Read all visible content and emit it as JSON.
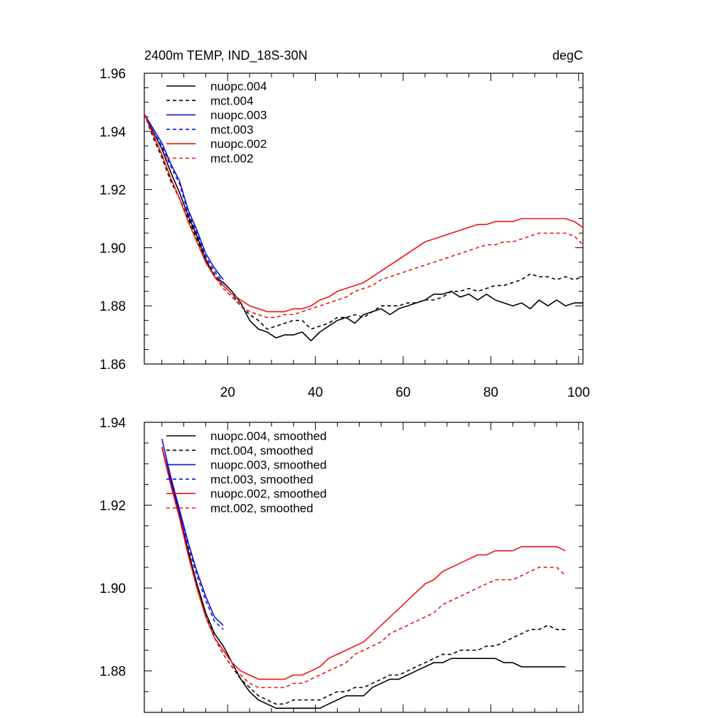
{
  "chart_data": [
    {
      "type": "line",
      "title": "2400m TEMP, IND_18S-30N",
      "units": "degC",
      "xlim": [
        1,
        101
      ],
      "ylim": [
        1.86,
        1.96
      ],
      "xticks": [
        20,
        40,
        60,
        80,
        100
      ],
      "xtick_labels": [
        "20",
        "40",
        "60",
        "80",
        "100"
      ],
      "yticks": [
        1.86,
        1.88,
        1.9,
        1.92,
        1.94,
        1.96
      ],
      "ytick_labels": [
        "1.86",
        "1.88",
        "1.90",
        "1.92",
        "1.94",
        "1.96"
      ],
      "legend_position": "top-left",
      "series": [
        {
          "name": "nuopc.004",
          "color": "#000000",
          "dashed": false,
          "x": [
            1,
            3,
            5,
            7,
            9,
            11,
            13,
            15,
            17,
            19,
            21,
            23,
            25,
            27,
            29,
            31,
            33,
            35,
            37,
            39,
            41,
            43,
            45,
            47,
            49,
            51,
            53,
            55,
            57,
            59,
            61,
            63,
            65,
            67,
            69,
            71,
            73,
            75,
            77,
            79,
            81,
            83,
            85,
            87,
            89,
            91,
            93,
            95,
            97,
            99,
            101
          ],
          "y": [
            1.946,
            1.94,
            1.934,
            1.926,
            1.919,
            1.911,
            1.904,
            1.896,
            1.89,
            1.888,
            1.885,
            1.881,
            1.875,
            1.872,
            1.871,
            1.869,
            1.87,
            1.87,
            1.871,
            1.868,
            1.871,
            1.873,
            1.875,
            1.876,
            1.874,
            1.877,
            1.878,
            1.879,
            1.877,
            1.879,
            1.88,
            1.881,
            1.882,
            1.884,
            1.884,
            1.885,
            1.883,
            1.884,
            1.882,
            1.884,
            1.882,
            1.881,
            1.88,
            1.881,
            1.879,
            1.882,
            1.88,
            1.882,
            1.88,
            1.881,
            1.881
          ]
        },
        {
          "name": "mct.004",
          "color": "#000000",
          "dashed": true,
          "x": [
            1,
            3,
            5,
            7,
            9,
            11,
            13,
            15,
            17,
            19,
            21,
            23,
            25,
            27,
            29,
            31,
            33,
            35,
            37,
            39,
            41,
            43,
            45,
            47,
            49,
            51,
            53,
            55,
            57,
            59,
            61,
            63,
            65,
            67,
            69,
            71,
            73,
            75,
            77,
            79,
            81,
            83,
            85,
            87,
            89,
            91,
            93,
            95,
            97,
            99,
            101
          ],
          "y": [
            1.946,
            1.938,
            1.931,
            1.923,
            1.917,
            1.91,
            1.903,
            1.896,
            1.891,
            1.887,
            1.884,
            1.88,
            1.877,
            1.875,
            1.872,
            1.873,
            1.874,
            1.875,
            1.875,
            1.872,
            1.873,
            1.874,
            1.876,
            1.876,
            1.877,
            1.876,
            1.878,
            1.88,
            1.88,
            1.88,
            1.881,
            1.881,
            1.882,
            1.882,
            1.883,
            1.885,
            1.885,
            1.886,
            1.885,
            1.886,
            1.887,
            1.887,
            1.888,
            1.889,
            1.891,
            1.89,
            1.89,
            1.889,
            1.89,
            1.889,
            1.89
          ]
        },
        {
          "name": "nuopc.003",
          "color": "#1010dd",
          "dashed": false,
          "x": [
            1,
            3,
            5,
            7,
            9,
            11,
            13,
            15,
            17,
            19
          ],
          "y": [
            1.946,
            1.941,
            1.936,
            1.929,
            1.923,
            1.913,
            1.906,
            1.898,
            1.893,
            1.889
          ]
        },
        {
          "name": "mct.003",
          "color": "#1010dd",
          "dashed": true,
          "x": [
            1,
            3,
            5,
            7,
            9,
            11,
            13,
            15,
            17,
            19
          ],
          "y": [
            1.946,
            1.94,
            1.935,
            1.928,
            1.922,
            1.912,
            1.905,
            1.897,
            1.892,
            1.888
          ]
        },
        {
          "name": "nuopc.002",
          "color": "#ee1111",
          "dashed": false,
          "x": [
            1,
            3,
            5,
            7,
            9,
            11,
            13,
            15,
            17,
            19,
            21,
            23,
            25,
            27,
            29,
            31,
            33,
            35,
            37,
            39,
            41,
            43,
            45,
            47,
            49,
            51,
            53,
            55,
            57,
            59,
            61,
            63,
            65,
            67,
            69,
            71,
            73,
            75,
            77,
            79,
            81,
            83,
            85,
            87,
            89,
            91,
            93,
            95,
            97,
            99,
            101
          ],
          "y": [
            1.946,
            1.939,
            1.932,
            1.924,
            1.917,
            1.909,
            1.902,
            1.895,
            1.89,
            1.887,
            1.884,
            1.882,
            1.88,
            1.879,
            1.878,
            1.878,
            1.878,
            1.879,
            1.879,
            1.88,
            1.882,
            1.883,
            1.885,
            1.886,
            1.887,
            1.888,
            1.89,
            1.892,
            1.894,
            1.896,
            1.898,
            1.9,
            1.902,
            1.903,
            1.904,
            1.905,
            1.906,
            1.907,
            1.908,
            1.908,
            1.909,
            1.909,
            1.909,
            1.91,
            1.91,
            1.91,
            1.91,
            1.91,
            1.91,
            1.909,
            1.907
          ]
        },
        {
          "name": "mct.002",
          "color": "#ee1111",
          "dashed": true,
          "x": [
            1,
            3,
            5,
            7,
            9,
            11,
            13,
            15,
            17,
            19,
            21,
            23,
            25,
            27,
            29,
            31,
            33,
            35,
            37,
            39,
            41,
            43,
            45,
            47,
            49,
            51,
            53,
            55,
            57,
            59,
            61,
            63,
            65,
            67,
            69,
            71,
            73,
            75,
            77,
            79,
            81,
            83,
            85,
            87,
            89,
            91,
            93,
            95,
            97,
            99,
            101
          ],
          "y": [
            1.946,
            1.939,
            1.932,
            1.924,
            1.917,
            1.909,
            1.902,
            1.895,
            1.89,
            1.886,
            1.883,
            1.88,
            1.878,
            1.877,
            1.876,
            1.876,
            1.877,
            1.877,
            1.878,
            1.879,
            1.88,
            1.881,
            1.882,
            1.883,
            1.885,
            1.886,
            1.887,
            1.889,
            1.89,
            1.891,
            1.892,
            1.893,
            1.894,
            1.895,
            1.896,
            1.897,
            1.898,
            1.899,
            1.9,
            1.901,
            1.901,
            1.902,
            1.902,
            1.903,
            1.904,
            1.905,
            1.905,
            1.905,
            1.905,
            1.904,
            1.901
          ]
        }
      ]
    },
    {
      "type": "line",
      "title": "",
      "xlim": [
        1,
        101
      ],
      "ylim": [
        1.87,
        1.94
      ],
      "xticks": [
        20,
        40,
        60,
        80,
        100
      ],
      "yticks": [
        1.88,
        1.9,
        1.92,
        1.94
      ],
      "ytick_labels": [
        "1.88",
        "1.90",
        "1.92",
        "1.94"
      ],
      "legend_position": "top-left",
      "series": [
        {
          "name": "nuopc.004, smoothed",
          "color": "#000000",
          "dashed": false,
          "x": [
            5,
            7,
            9,
            11,
            13,
            15,
            17,
            19,
            21,
            23,
            25,
            27,
            29,
            31,
            33,
            35,
            37,
            39,
            41,
            43,
            45,
            47,
            49,
            51,
            53,
            55,
            57,
            59,
            61,
            63,
            65,
            67,
            69,
            71,
            73,
            75,
            77,
            79,
            81,
            83,
            85,
            87,
            89,
            91,
            93,
            95,
            97
          ],
          "y": [
            1.934,
            1.926,
            1.918,
            1.909,
            1.901,
            1.894,
            1.889,
            1.886,
            1.882,
            1.878,
            1.875,
            1.873,
            1.872,
            1.871,
            1.871,
            1.871,
            1.871,
            1.871,
            1.871,
            1.872,
            1.873,
            1.874,
            1.874,
            1.874,
            1.876,
            1.877,
            1.878,
            1.878,
            1.879,
            1.88,
            1.881,
            1.882,
            1.882,
            1.883,
            1.883,
            1.883,
            1.883,
            1.883,
            1.883,
            1.882,
            1.882,
            1.881,
            1.881,
            1.881,
            1.881,
            1.881,
            1.881
          ]
        },
        {
          "name": "mct.004, smoothed",
          "color": "#000000",
          "dashed": true,
          "x": [
            5,
            7,
            9,
            11,
            13,
            15,
            17,
            19,
            21,
            23,
            25,
            27,
            29,
            31,
            33,
            35,
            37,
            39,
            41,
            43,
            45,
            47,
            49,
            51,
            53,
            55,
            57,
            59,
            61,
            63,
            65,
            67,
            69,
            71,
            73,
            75,
            77,
            79,
            81,
            83,
            85,
            87,
            89,
            91,
            93,
            95,
            97
          ],
          "y": [
            1.934,
            1.926,
            1.917,
            1.909,
            1.901,
            1.894,
            1.888,
            1.884,
            1.881,
            1.878,
            1.876,
            1.874,
            1.873,
            1.872,
            1.872,
            1.873,
            1.873,
            1.873,
            1.873,
            1.874,
            1.875,
            1.875,
            1.876,
            1.876,
            1.877,
            1.878,
            1.879,
            1.879,
            1.88,
            1.881,
            1.882,
            1.883,
            1.884,
            1.884,
            1.885,
            1.885,
            1.885,
            1.886,
            1.886,
            1.887,
            1.888,
            1.889,
            1.89,
            1.89,
            1.891,
            1.89,
            1.89
          ]
        },
        {
          "name": "nuopc.003, smoothed",
          "color": "#1010dd",
          "dashed": false,
          "x": [
            5,
            7,
            9,
            11,
            13,
            15,
            17,
            19
          ],
          "y": [
            1.936,
            1.927,
            1.919,
            1.911,
            1.904,
            1.898,
            1.893,
            1.891
          ]
        },
        {
          "name": "mct.003, smoothed",
          "color": "#1010dd",
          "dashed": true,
          "x": [
            5,
            7,
            9,
            11,
            13,
            15,
            17,
            19
          ],
          "y": [
            1.934,
            1.926,
            1.918,
            1.91,
            1.903,
            1.897,
            1.892,
            1.89
          ]
        },
        {
          "name": "nuopc.002, smoothed",
          "color": "#ee1111",
          "dashed": false,
          "x": [
            5,
            7,
            9,
            11,
            13,
            15,
            17,
            19,
            21,
            23,
            25,
            27,
            29,
            31,
            33,
            35,
            37,
            39,
            41,
            43,
            45,
            47,
            49,
            51,
            53,
            55,
            57,
            59,
            61,
            63,
            65,
            67,
            69,
            71,
            73,
            75,
            77,
            79,
            81,
            83,
            85,
            87,
            89,
            91,
            93,
            95,
            97
          ],
          "y": [
            1.934,
            1.925,
            1.917,
            1.908,
            1.9,
            1.893,
            1.888,
            1.885,
            1.882,
            1.88,
            1.879,
            1.878,
            1.878,
            1.878,
            1.878,
            1.879,
            1.879,
            1.88,
            1.881,
            1.883,
            1.884,
            1.885,
            1.886,
            1.887,
            1.889,
            1.891,
            1.893,
            1.895,
            1.897,
            1.899,
            1.901,
            1.902,
            1.904,
            1.905,
            1.906,
            1.907,
            1.908,
            1.908,
            1.909,
            1.909,
            1.909,
            1.91,
            1.91,
            1.91,
            1.91,
            1.91,
            1.909
          ]
        },
        {
          "name": "mct.002, smoothed",
          "color": "#ee1111",
          "dashed": true,
          "x": [
            5,
            7,
            9,
            11,
            13,
            15,
            17,
            19,
            21,
            23,
            25,
            27,
            29,
            31,
            33,
            35,
            37,
            39,
            41,
            43,
            45,
            47,
            49,
            51,
            53,
            55,
            57,
            59,
            61,
            63,
            65,
            67,
            69,
            71,
            73,
            75,
            77,
            79,
            81,
            83,
            85,
            87,
            89,
            91,
            93,
            95,
            97
          ],
          "y": [
            1.934,
            1.925,
            1.917,
            1.908,
            1.9,
            1.893,
            1.888,
            1.884,
            1.881,
            1.879,
            1.877,
            1.876,
            1.876,
            1.876,
            1.876,
            1.877,
            1.877,
            1.878,
            1.879,
            1.88,
            1.881,
            1.882,
            1.884,
            1.885,
            1.886,
            1.887,
            1.889,
            1.89,
            1.891,
            1.892,
            1.893,
            1.894,
            1.896,
            1.897,
            1.898,
            1.899,
            1.9,
            1.901,
            1.902,
            1.902,
            1.902,
            1.903,
            1.904,
            1.905,
            1.905,
            1.905,
            1.903
          ]
        }
      ]
    }
  ]
}
